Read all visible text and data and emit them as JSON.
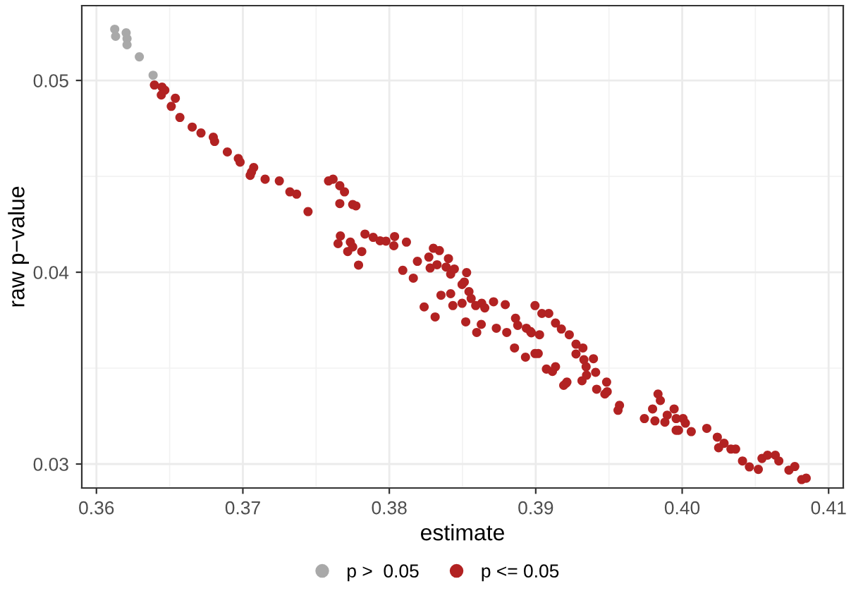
{
  "chart_data": {
    "type": "scatter",
    "xlabel": "estimate",
    "ylabel": "raw p−value",
    "xlim": [
      0.359,
      0.411
    ],
    "ylim": [
      0.02875,
      0.0539
    ],
    "xticks": [
      0.36,
      0.37,
      0.38,
      0.39,
      {
        "value": 0.4,
        "label": "0.40"
      },
      0.41
    ],
    "yticks": [
      0.03,
      0.04,
      0.05
    ],
    "grid": true,
    "legend": "bottom",
    "marker": "circle",
    "series": [
      {
        "name": "p >  0.05",
        "color": "#a9a9a9",
        "x": [
          0.36125,
          0.36131,
          0.36203,
          0.36209,
          0.36209,
          0.36293,
          0.36387
        ],
        "values": [
          0.05267,
          0.0523,
          0.05248,
          0.05218,
          0.05186,
          0.05123,
          0.05027
        ]
      },
      {
        "name": "p <= 0.05",
        "color": "#b22222",
        "x": [
          0.36396,
          0.36448,
          0.36467,
          0.36443,
          0.36539,
          0.36511,
          0.3657,
          0.36654,
          0.36714,
          0.36798,
          0.36807,
          0.36894,
          0.36969,
          0.36981,
          0.37074,
          0.37059,
          0.3705,
          0.37152,
          0.37249,
          0.37321,
          0.37367,
          0.37445,
          0.37585,
          0.37616,
          0.37662,
          0.37694,
          0.37662,
          0.3775,
          0.37772,
          0.37666,
          0.3765,
          0.37716,
          0.37734,
          0.3775,
          0.3779,
          0.37812,
          0.37834,
          0.3789,
          0.37937,
          0.37977,
          0.38036,
          0.38031,
          0.38117,
          0.38092,
          0.38164,
          0.38192,
          0.3827,
          0.38301,
          0.38342,
          0.38279,
          0.38326,
          0.38388,
          0.38404,
          0.38419,
          0.38444,
          0.38528,
          0.38512,
          0.38497,
          0.38353,
          0.38419,
          0.38238,
          0.38313,
          0.38434,
          0.38497,
          0.38544,
          0.38559,
          0.3859,
          0.38522,
          0.38631,
          0.38652,
          0.38628,
          0.38597,
          0.38712,
          0.38731,
          0.38792,
          0.38802,
          0.38862,
          0.38877,
          0.38855,
          0.3893,
          0.38936,
          0.3897,
          0.38995,
          0.39026,
          0.39042,
          0.39089,
          0.38995,
          0.39017,
          0.39135,
          0.39175,
          0.39229,
          0.39275,
          0.39275,
          0.39073,
          0.39114,
          0.39135,
          0.39207,
          0.39316,
          0.38964,
          0.39322,
          0.39329,
          0.39394,
          0.39344,
          0.39409,
          0.39347,
          0.39484,
          0.39416,
          0.39488,
          0.39472,
          0.39213,
          0.39191,
          0.39572,
          0.39562,
          0.39835,
          0.39851,
          0.39798,
          0.39742,
          0.39814,
          0.39898,
          0.39945,
          0.39882,
          0.39959,
          0.40006,
          0.40022,
          0.39975,
          0.39959,
          0.40062,
          0.40168,
          0.4024,
          0.40286,
          0.40249,
          0.40333,
          0.40365,
          0.40412,
          0.40459,
          0.4052,
          0.40545,
          0.40583,
          0.40636,
          0.4066,
          0.40729,
          0.40769,
          0.40816,
          0.40847
        ],
        "values": [
          0.04976,
          0.04965,
          0.04949,
          0.04924,
          0.04907,
          0.04865,
          0.04807,
          0.04757,
          0.04726,
          0.04704,
          0.04682,
          0.04627,
          0.04593,
          0.04574,
          0.04546,
          0.04522,
          0.04505,
          0.04485,
          0.04476,
          0.04419,
          0.04407,
          0.04316,
          0.04476,
          0.04485,
          0.04451,
          0.04419,
          0.04358,
          0.04353,
          0.04346,
          0.04189,
          0.04149,
          0.04108,
          0.04157,
          0.04132,
          0.04037,
          0.04108,
          0.04199,
          0.04182,
          0.04164,
          0.04162,
          0.04186,
          0.04138,
          0.04157,
          0.0401,
          0.03969,
          0.04057,
          0.04079,
          0.04125,
          0.04113,
          0.04022,
          0.04039,
          0.04027,
          0.04071,
          0.0399,
          0.04017,
          0.03998,
          0.03949,
          0.03936,
          0.0388,
          0.03888,
          0.03819,
          0.03767,
          0.03826,
          0.03838,
          0.03899,
          0.03863,
          0.03826,
          0.03741,
          0.03838,
          0.03814,
          0.03728,
          0.03686,
          0.03846,
          0.03708,
          0.03831,
          0.03686,
          0.0376,
          0.03723,
          0.03605,
          0.03557,
          0.03708,
          0.03684,
          0.03826,
          0.03674,
          0.03785,
          0.03785,
          0.03576,
          0.03576,
          0.03735,
          0.03704,
          0.03674,
          0.03625,
          0.03574,
          0.03495,
          0.03483,
          0.03507,
          0.03421,
          0.03434,
          0.03691,
          0.03605,
          0.03544,
          0.03549,
          0.03507,
          0.03478,
          0.03463,
          0.03427,
          0.0339,
          0.03377,
          0.03365,
          0.03427,
          0.0341,
          0.03306,
          0.0328,
          0.03365,
          0.03331,
          0.03287,
          0.03237,
          0.03225,
          0.03255,
          0.03287,
          0.03218,
          0.03237,
          0.03237,
          0.03213,
          0.03176,
          0.03176,
          0.03169,
          0.03186,
          0.0314,
          0.03108,
          0.03085,
          0.03078,
          0.03078,
          0.03016,
          0.02985,
          0.02972,
          0.03029,
          0.03046,
          0.03046,
          0.03016,
          0.02968,
          0.02987,
          0.02919,
          0.02926
        ]
      }
    ]
  }
}
